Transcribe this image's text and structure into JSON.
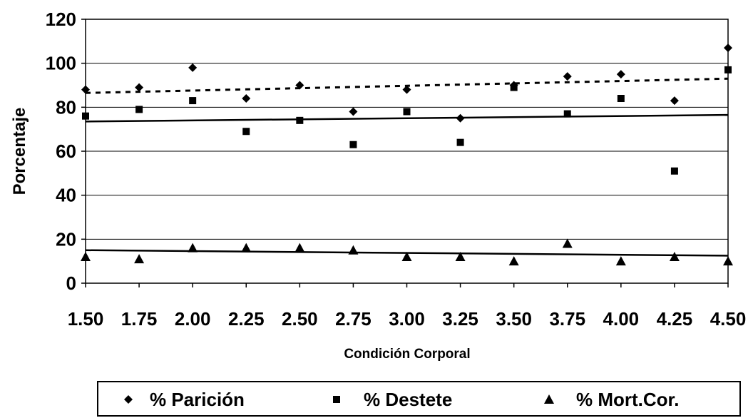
{
  "chart_data": {
    "type": "scatter",
    "title": "",
    "xlabel": "Condición Corporal",
    "ylabel": "Porcentaje",
    "xlim": [
      1.5,
      4.5
    ],
    "ylim": [
      0,
      120
    ],
    "x_ticks": [
      "1.50",
      "1.75",
      "2.00",
      "2.25",
      "2.50",
      "2.75",
      "3.00",
      "3.25",
      "3.50",
      "3.75",
      "4.00",
      "4.25",
      "4.50"
    ],
    "y_ticks": [
      "0",
      "20",
      "40",
      "60",
      "80",
      "100",
      "120"
    ],
    "grid": "horizontal",
    "legend_position": "bottom",
    "x": [
      1.5,
      1.75,
      2.0,
      2.25,
      2.5,
      2.75,
      3.0,
      3.25,
      3.5,
      3.75,
      4.0,
      4.25,
      4.5
    ],
    "series": [
      {
        "name": "% Parición",
        "marker": "diamond",
        "values": [
          88,
          89,
          98,
          84,
          90,
          78,
          88,
          75,
          90,
          94,
          95,
          83,
          107
        ],
        "trend": {
          "style": "dashed",
          "y_start": 86.5,
          "y_end": 93
        }
      },
      {
        "name": "% Destete",
        "marker": "square",
        "values": [
          76,
          79,
          83,
          69,
          74,
          63,
          78,
          64,
          89,
          77,
          84,
          51,
          97
        ],
        "trend": {
          "style": "solid",
          "y_start": 73.5,
          "y_end": 76.5
        }
      },
      {
        "name": "% Mort.Cor.",
        "marker": "triangle",
        "values": [
          12,
          11,
          16,
          16,
          16,
          15,
          12,
          12,
          10,
          18,
          10,
          12,
          10
        ],
        "trend": {
          "style": "solid",
          "y_start": 15,
          "y_end": 12.5
        }
      }
    ]
  }
}
